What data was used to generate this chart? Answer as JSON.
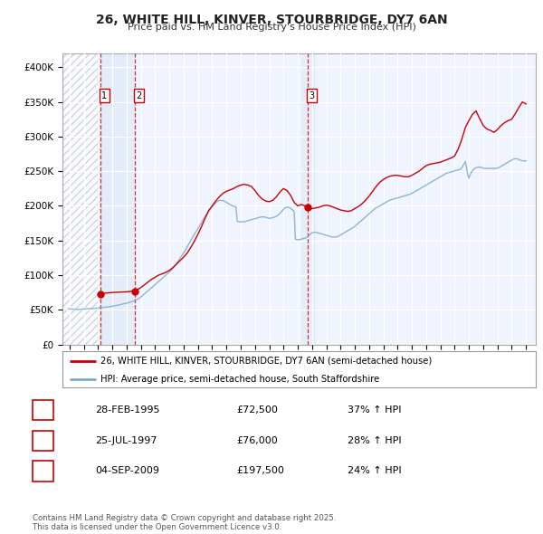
{
  "title": "26, WHITE HILL, KINVER, STOURBRIDGE, DY7 6AN",
  "subtitle": "Price paid vs. HM Land Registry's House Price Index (HPI)",
  "bg_color": "#ffffff",
  "plot_bg_color": "#f0f4ff",
  "grid_color": "#cccccc",
  "red_color": "#cc0000",
  "blue_color": "#7aaacc",
  "sale_labels": [
    "1",
    "2",
    "3"
  ],
  "sale_hpi_pct": [
    "37% ↑ HPI",
    "28% ↑ HPI",
    "24% ↑ HPI"
  ],
  "sale_date_labels": [
    "28-FEB-1995",
    "25-JUL-1997",
    "04-SEP-2009"
  ],
  "sale_price_labels": [
    "£72,500",
    "£76,000",
    "£197,500"
  ],
  "sale_prices": [
    72500,
    76000,
    197500
  ],
  "sale_year_nums": [
    1995.15,
    1997.55,
    2009.67
  ],
  "ylim": [
    0,
    420000
  ],
  "yticks": [
    0,
    50000,
    100000,
    150000,
    200000,
    250000,
    300000,
    350000,
    400000
  ],
  "ytick_labels": [
    "£0",
    "£50K",
    "£100K",
    "£150K",
    "£200K",
    "£250K",
    "£300K",
    "£350K",
    "£400K"
  ],
  "xlim_start": 1992.5,
  "xlim_end": 2025.7,
  "legend_line1": "26, WHITE HILL, KINVER, STOURBRIDGE, DY7 6AN (semi-detached house)",
  "legend_line2": "HPI: Average price, semi-detached house, South Staffordshire",
  "footer": "Contains HM Land Registry data © Crown copyright and database right 2025.\nThis data is licensed under the Open Government Licence v3.0.",
  "hpi_years": [
    1993.0,
    1993.083,
    1993.167,
    1993.25,
    1993.333,
    1993.417,
    1993.5,
    1993.583,
    1993.667,
    1993.75,
    1993.833,
    1993.917,
    1994.0,
    1994.083,
    1994.167,
    1994.25,
    1994.333,
    1994.417,
    1994.5,
    1994.583,
    1994.667,
    1994.75,
    1994.833,
    1994.917,
    1995.0,
    1995.083,
    1995.167,
    1995.25,
    1995.333,
    1995.417,
    1995.5,
    1995.583,
    1995.667,
    1995.75,
    1995.833,
    1995.917,
    1996.0,
    1996.083,
    1996.167,
    1996.25,
    1996.333,
    1996.417,
    1996.5,
    1996.583,
    1996.667,
    1996.75,
    1996.833,
    1996.917,
    1997.0,
    1997.083,
    1997.167,
    1997.25,
    1997.333,
    1997.417,
    1997.5,
    1997.583,
    1997.667,
    1997.75,
    1997.833,
    1997.917,
    1998.0,
    1998.083,
    1998.167,
    1998.25,
    1998.333,
    1998.417,
    1998.5,
    1998.583,
    1998.667,
    1998.75,
    1998.833,
    1998.917,
    1999.0,
    1999.083,
    1999.167,
    1999.25,
    1999.333,
    1999.417,
    1999.5,
    1999.583,
    1999.667,
    1999.75,
    1999.833,
    1999.917,
    2000.0,
    2000.083,
    2000.167,
    2000.25,
    2000.333,
    2000.417,
    2000.5,
    2000.583,
    2000.667,
    2000.75,
    2000.833,
    2000.917,
    2001.0,
    2001.083,
    2001.167,
    2001.25,
    2001.333,
    2001.417,
    2001.5,
    2001.583,
    2001.667,
    2001.75,
    2001.833,
    2001.917,
    2002.0,
    2002.083,
    2002.167,
    2002.25,
    2002.333,
    2002.417,
    2002.5,
    2002.583,
    2002.667,
    2002.75,
    2002.833,
    2002.917,
    2003.0,
    2003.083,
    2003.167,
    2003.25,
    2003.333,
    2003.417,
    2003.5,
    2003.583,
    2003.667,
    2003.75,
    2003.833,
    2003.917,
    2004.0,
    2004.083,
    2004.167,
    2004.25,
    2004.333,
    2004.417,
    2004.5,
    2004.583,
    2004.667,
    2004.75,
    2004.833,
    2004.917,
    2005.0,
    2005.083,
    2005.167,
    2005.25,
    2005.333,
    2005.417,
    2005.5,
    2005.583,
    2005.667,
    2005.75,
    2005.833,
    2005.917,
    2006.0,
    2006.083,
    2006.167,
    2006.25,
    2006.333,
    2006.417,
    2006.5,
    2006.583,
    2006.667,
    2006.75,
    2006.833,
    2006.917,
    2007.0,
    2007.083,
    2007.167,
    2007.25,
    2007.333,
    2007.417,
    2007.5,
    2007.583,
    2007.667,
    2007.75,
    2007.833,
    2007.917,
    2008.0,
    2008.083,
    2008.167,
    2008.25,
    2008.333,
    2008.417,
    2008.5,
    2008.583,
    2008.667,
    2008.75,
    2008.833,
    2008.917,
    2009.0,
    2009.083,
    2009.167,
    2009.25,
    2009.333,
    2009.417,
    2009.5,
    2009.583,
    2009.667,
    2009.75,
    2009.833,
    2009.917,
    2010.0,
    2010.083,
    2010.167,
    2010.25,
    2010.333,
    2010.417,
    2010.5,
    2010.583,
    2010.667,
    2010.75,
    2010.833,
    2010.917,
    2011.0,
    2011.083,
    2011.167,
    2011.25,
    2011.333,
    2011.417,
    2011.5,
    2011.583,
    2011.667,
    2011.75,
    2011.833,
    2011.917,
    2012.0,
    2012.083,
    2012.167,
    2012.25,
    2012.333,
    2012.417,
    2012.5,
    2012.583,
    2012.667,
    2012.75,
    2012.833,
    2012.917,
    2013.0,
    2013.083,
    2013.167,
    2013.25,
    2013.333,
    2013.417,
    2013.5,
    2013.583,
    2013.667,
    2013.75,
    2013.833,
    2013.917,
    2014.0,
    2014.083,
    2014.167,
    2014.25,
    2014.333,
    2014.417,
    2014.5,
    2014.583,
    2014.667,
    2014.75,
    2014.833,
    2014.917,
    2015.0,
    2015.083,
    2015.167,
    2015.25,
    2015.333,
    2015.417,
    2015.5,
    2015.583,
    2015.667,
    2015.75,
    2015.833,
    2015.917,
    2016.0,
    2016.083,
    2016.167,
    2016.25,
    2016.333,
    2016.417,
    2016.5,
    2016.583,
    2016.667,
    2016.75,
    2016.833,
    2016.917,
    2017.0,
    2017.083,
    2017.167,
    2017.25,
    2017.333,
    2017.417,
    2017.5,
    2017.583,
    2017.667,
    2017.75,
    2017.833,
    2017.917,
    2018.0,
    2018.083,
    2018.167,
    2018.25,
    2018.333,
    2018.417,
    2018.5,
    2018.583,
    2018.667,
    2018.75,
    2018.833,
    2018.917,
    2019.0,
    2019.083,
    2019.167,
    2019.25,
    2019.333,
    2019.417,
    2019.5,
    2019.583,
    2019.667,
    2019.75,
    2019.833,
    2019.917,
    2020.0,
    2020.083,
    2020.167,
    2020.25,
    2020.333,
    2020.417,
    2020.5,
    2020.583,
    2020.667,
    2020.75,
    2020.833,
    2020.917,
    2021.0,
    2021.083,
    2021.167,
    2021.25,
    2021.333,
    2021.417,
    2021.5,
    2021.583,
    2021.667,
    2021.75,
    2021.833,
    2021.917,
    2022.0,
    2022.083,
    2022.167,
    2022.25,
    2022.333,
    2022.417,
    2022.5,
    2022.583,
    2022.667,
    2022.75,
    2022.833,
    2022.917,
    2023.0,
    2023.083,
    2023.167,
    2023.25,
    2023.333,
    2023.417,
    2023.5,
    2023.583,
    2023.667,
    2023.75,
    2023.833,
    2023.917,
    2024.0,
    2024.083,
    2024.167,
    2024.25,
    2024.333,
    2024.417,
    2024.5,
    2024.583,
    2024.667,
    2024.75,
    2024.833,
    2024.917,
    2025.0
  ],
  "hpi_values": [
    51000,
    51200,
    51100,
    50800,
    50600,
    50500,
    50400,
    50400,
    50500,
    50600,
    50700,
    50900,
    51100,
    51200,
    51300,
    51400,
    51500,
    51600,
    51700,
    51800,
    51900,
    52000,
    52100,
    52300,
    52500,
    52700,
    52900,
    53100,
    53300,
    53500,
    53700,
    53900,
    54100,
    54300,
    54500,
    54800,
    55100,
    55400,
    55700,
    56000,
    56400,
    56800,
    57200,
    57600,
    58000,
    58400,
    58800,
    59200,
    59600,
    60000,
    60500,
    61000,
    61500,
    62000,
    62600,
    63300,
    64100,
    65000,
    66000,
    67200,
    68500,
    70000,
    71500,
    73000,
    74500,
    76000,
    77500,
    79000,
    80500,
    82000,
    83500,
    85000,
    86500,
    88000,
    89500,
    91000,
    92500,
    94000,
    95500,
    97000,
    98500,
    100000,
    101500,
    103000,
    104500,
    106000,
    108000,
    110000,
    112000,
    114500,
    117000,
    119500,
    122000,
    124500,
    127000,
    129500,
    132000,
    135000,
    138000,
    141000,
    144000,
    147000,
    150000,
    153000,
    156000,
    159000,
    162000,
    164500,
    167000,
    170000,
    173000,
    176000,
    179000,
    182000,
    185000,
    187500,
    190000,
    192500,
    195000,
    197000,
    199000,
    201000,
    203000,
    204500,
    206000,
    207000,
    207500,
    208000,
    208000,
    207500,
    207000,
    206000,
    205000,
    204000,
    203000,
    202000,
    201000,
    200000,
    199500,
    199000,
    198500,
    178000,
    177500,
    177000,
    177000,
    177000,
    177000,
    177000,
    177500,
    178000,
    178500,
    179000,
    179500,
    180000,
    180500,
    181000,
    181500,
    182000,
    182500,
    183000,
    183500,
    184000,
    184000,
    184000,
    184000,
    183500,
    183000,
    182500,
    182000,
    182000,
    182500,
    183000,
    183500,
    184000,
    185000,
    186000,
    187500,
    189000,
    191000,
    193000,
    195000,
    196500,
    197500,
    198000,
    198000,
    197500,
    196500,
    195000,
    193500,
    192000,
    152000,
    151500,
    151000,
    151000,
    151500,
    152000,
    152500,
    153000,
    153500,
    154000,
    155000,
    156500,
    158000,
    160000,
    161000,
    161500,
    162000,
    162000,
    161500,
    161000,
    160500,
    160000,
    159500,
    159000,
    158500,
    158000,
    157500,
    157000,
    156500,
    156000,
    155500,
    155000,
    155000,
    155000,
    155000,
    155500,
    156000,
    157000,
    158000,
    159000,
    160000,
    161000,
    162000,
    163000,
    164000,
    165000,
    166000,
    167000,
    168000,
    169000,
    170500,
    172000,
    173500,
    175000,
    176500,
    178000,
    179500,
    181000,
    182500,
    184000,
    185500,
    187000,
    188500,
    190000,
    191500,
    193000,
    194500,
    196000,
    197000,
    198000,
    199000,
    200000,
    201000,
    202000,
    203000,
    204000,
    205000,
    206000,
    207000,
    208000,
    208500,
    209000,
    209500,
    210000,
    210500,
    211000,
    211500,
    212000,
    212500,
    213000,
    213500,
    214000,
    214500,
    215000,
    215500,
    216000,
    216500,
    217000,
    218000,
    219000,
    220000,
    221000,
    222000,
    223000,
    224000,
    225000,
    226000,
    227000,
    228000,
    229000,
    230000,
    231000,
    232000,
    233000,
    234000,
    235000,
    236000,
    237000,
    238000,
    239000,
    240000,
    241000,
    242000,
    243000,
    244000,
    245000,
    246000,
    247000,
    247500,
    248000,
    248500,
    249000,
    249500,
    250000,
    250500,
    251000,
    251500,
    252000,
    252500,
    253000,
    255000,
    258000,
    261000,
    264000,
    255000,
    245000,
    240000,
    245000,
    248000,
    251000,
    253000,
    254000,
    255000,
    255500,
    256000,
    256000,
    255500,
    255000,
    254500,
    254000,
    254000,
    254000,
    254000,
    254000,
    254000,
    254000,
    254000,
    254000,
    254000,
    254000,
    254500,
    255000,
    256000,
    257000,
    258000,
    259000,
    260000,
    261000,
    262000,
    263000,
    264000,
    265000,
    266000,
    267000,
    267500,
    268000,
    268000,
    267500,
    267000,
    266000,
    265500,
    265000,
    265000,
    265000,
    265000
  ],
  "red_years": [
    1995.15,
    1995.25,
    1995.5,
    1995.75,
    1996.0,
    1996.25,
    1996.5,
    1996.75,
    1997.0,
    1997.25,
    1997.5,
    1997.55,
    1997.75,
    1998.0,
    1998.25,
    1998.5,
    1998.75,
    1999.0,
    1999.25,
    1999.5,
    1999.75,
    2000.0,
    2000.25,
    2000.5,
    2000.75,
    2001.0,
    2001.25,
    2001.5,
    2001.75,
    2002.0,
    2002.25,
    2002.5,
    2002.75,
    2003.0,
    2003.25,
    2003.5,
    2003.75,
    2004.0,
    2004.25,
    2004.5,
    2004.75,
    2005.0,
    2005.25,
    2005.5,
    2005.75,
    2006.0,
    2006.25,
    2006.5,
    2006.75,
    2007.0,
    2007.25,
    2007.5,
    2007.75,
    2008.0,
    2008.25,
    2008.5,
    2008.75,
    2009.0,
    2009.25,
    2009.5,
    2009.67,
    2009.75,
    2010.0,
    2010.25,
    2010.5,
    2010.75,
    2011.0,
    2011.25,
    2011.5,
    2011.75,
    2012.0,
    2012.25,
    2012.5,
    2012.75,
    2013.0,
    2013.25,
    2013.5,
    2013.75,
    2014.0,
    2014.25,
    2014.5,
    2014.75,
    2015.0,
    2015.25,
    2015.5,
    2015.75,
    2016.0,
    2016.25,
    2016.5,
    2016.75,
    2017.0,
    2017.25,
    2017.5,
    2017.75,
    2018.0,
    2018.25,
    2018.5,
    2018.75,
    2019.0,
    2019.25,
    2019.5,
    2019.75,
    2020.0,
    2020.25,
    2020.5,
    2020.75,
    2021.0,
    2021.25,
    2021.5,
    2021.75,
    2022.0,
    2022.25,
    2022.5,
    2022.75,
    2023.0,
    2023.25,
    2023.5,
    2023.75,
    2024.0,
    2024.25,
    2024.5,
    2024.75,
    2025.0
  ],
  "red_values": [
    72500,
    73000,
    74000,
    74500,
    75000,
    75200,
    75500,
    75700,
    76000,
    76500,
    77500,
    76000,
    79000,
    82000,
    86000,
    90000,
    94000,
    97000,
    100000,
    102000,
    104000,
    107000,
    111000,
    116000,
    121000,
    126000,
    132000,
    140000,
    149000,
    159000,
    170000,
    182000,
    193000,
    200000,
    207000,
    213000,
    218000,
    221000,
    223000,
    225000,
    228000,
    230000,
    231000,
    230000,
    228000,
    222000,
    215000,
    210000,
    207000,
    206000,
    208000,
    213000,
    220000,
    225000,
    222000,
    215000,
    205000,
    200000,
    202000,
    200000,
    197500,
    196000,
    196000,
    197000,
    198000,
    200000,
    201000,
    200000,
    198000,
    196000,
    194000,
    193000,
    192000,
    193000,
    196000,
    199000,
    203000,
    208000,
    214000,
    221000,
    228000,
    234000,
    238000,
    241000,
    243000,
    244000,
    244000,
    243000,
    242000,
    242000,
    244000,
    247000,
    250000,
    254000,
    258000,
    260000,
    261000,
    262000,
    263000,
    265000,
    267000,
    269000,
    272000,
    282000,
    296000,
    313000,
    323000,
    332000,
    337000,
    326000,
    316000,
    311000,
    309000,
    306000,
    310000,
    316000,
    320000,
    323000,
    325000,
    333000,
    342000,
    350000,
    347000
  ]
}
